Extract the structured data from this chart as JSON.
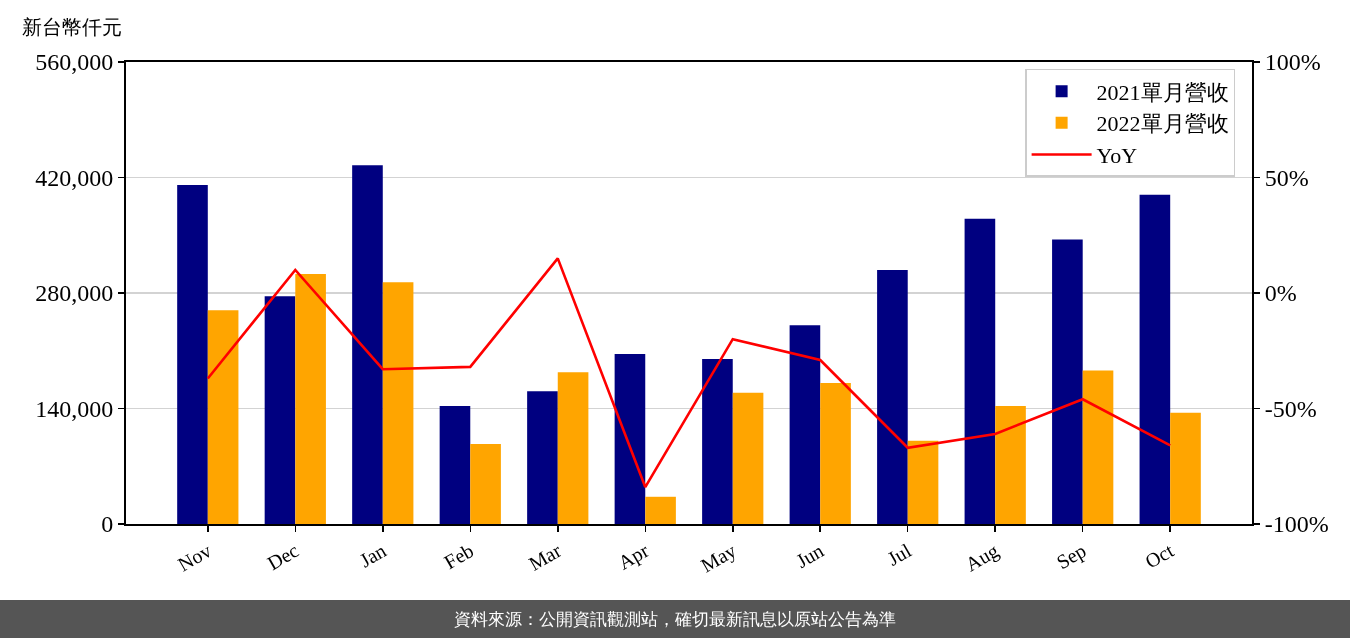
{
  "chart_data": {
    "type": "bar",
    "ylabel": "新台幣仟元",
    "categories": [
      "Nov",
      "Dec",
      "Jan",
      "Feb",
      "Mar",
      "Apr",
      "May",
      "Jun",
      "Jul",
      "Aug",
      "Sep",
      "Oct"
    ],
    "series": [
      {
        "name": "2021單月營收",
        "color": "#000080",
        "values": [
          411000,
          276000,
          435000,
          143000,
          161000,
          206000,
          200000,
          241000,
          308000,
          370000,
          345000,
          399000
        ]
      },
      {
        "name": "2022單月營收",
        "color": "#ffa500",
        "values": [
          259000,
          303000,
          293000,
          97000,
          184000,
          33000,
          159000,
          171000,
          101000,
          143000,
          186000,
          135000
        ]
      },
      {
        "name": "YoY",
        "type": "line",
        "axis": "y2",
        "color": "#ff0000",
        "values": [
          -37,
          10,
          -33,
          -32,
          15,
          -84,
          -20,
          -29,
          -67,
          -61,
          -46,
          -66
        ]
      }
    ],
    "ylim": [
      0,
      560000
    ],
    "yticks": [
      0,
      {
        "value": 140000,
        "label": "140,000"
      },
      {
        "value": 280000,
        "label": "280,000"
      },
      {
        "value": 420000,
        "label": "420,000"
      },
      {
        "value": 560000,
        "label": "560,000"
      }
    ],
    "y2lim": [
      -100,
      100
    ],
    "y2ticks": [
      {
        "value": -100,
        "label": "-100%"
      },
      {
        "value": -50,
        "label": "-50%"
      },
      {
        "value": 0,
        "label": "0%"
      },
      {
        "value": 50,
        "label": "50%"
      },
      {
        "value": 100,
        "label": "100%"
      }
    ],
    "grid": "y",
    "legend": "top right",
    "annotations": [
      "資料來源：公開資訊觀測站，確切最新訊息以原站公告為準"
    ]
  }
}
